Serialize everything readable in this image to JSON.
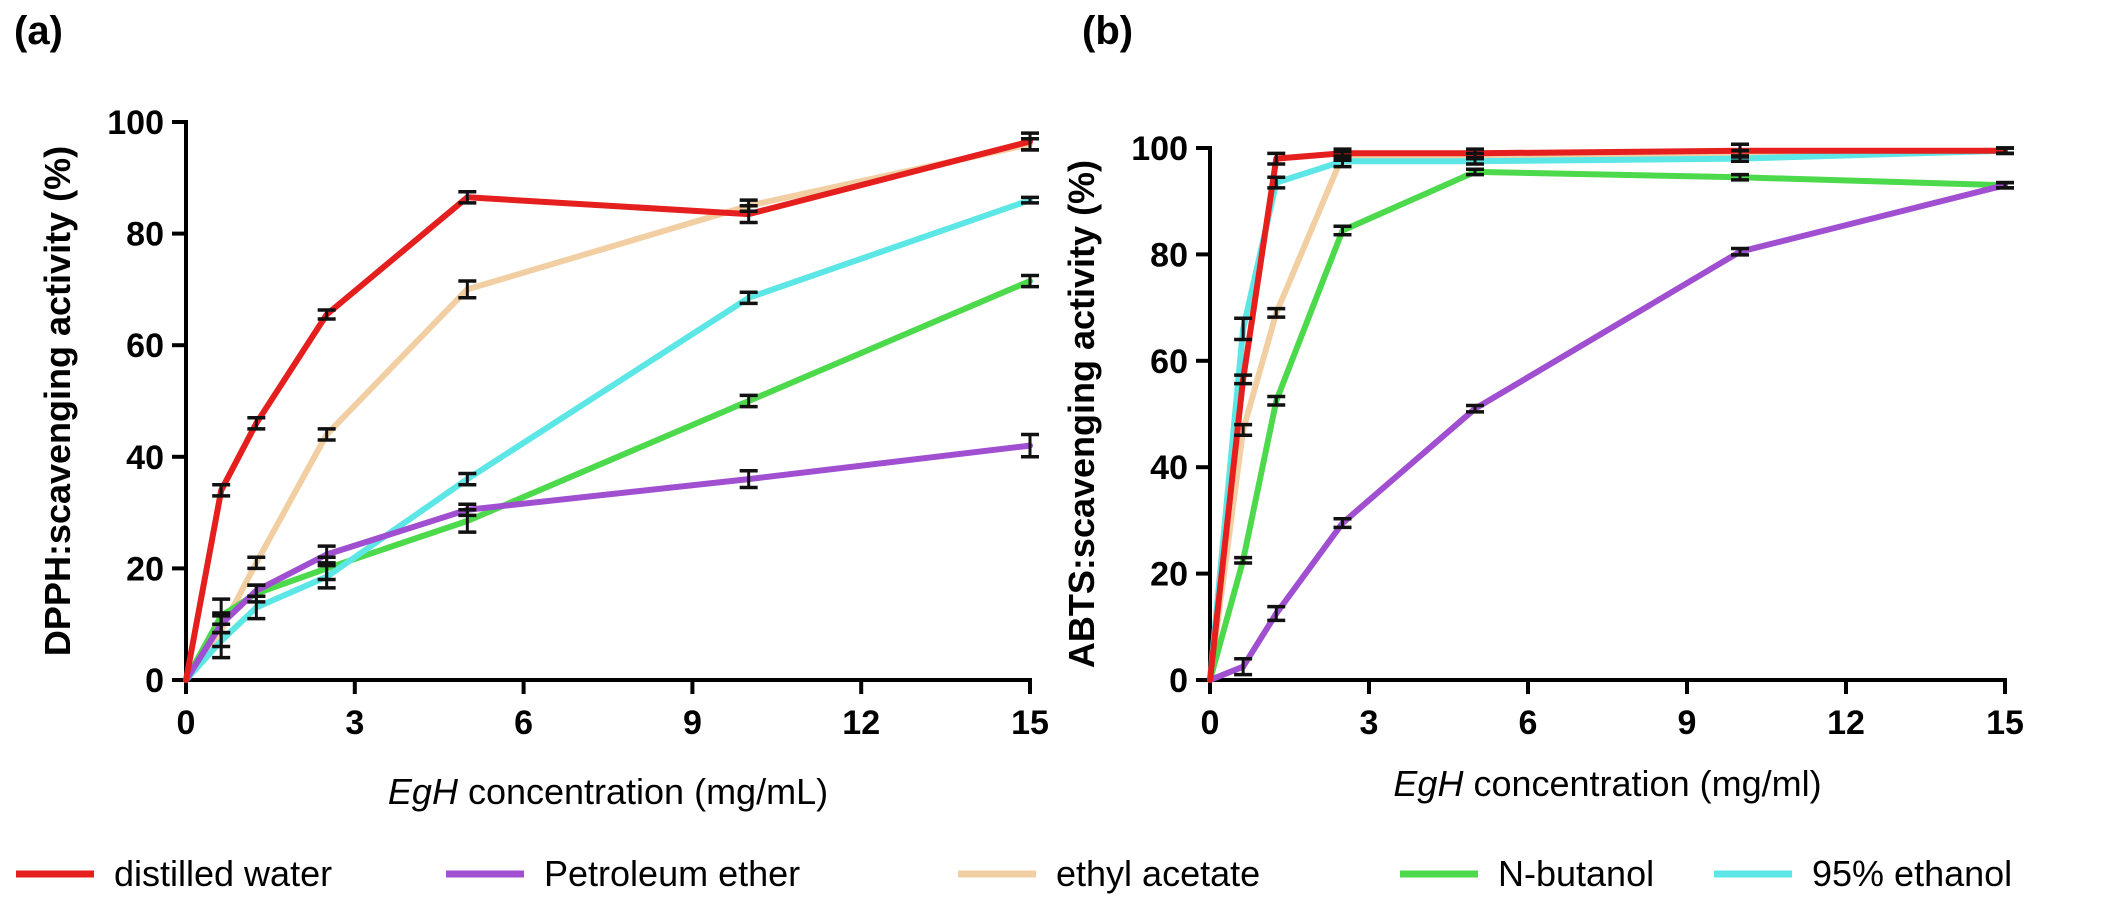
{
  "panels": [
    {
      "panel_label": "(a)",
      "chart_data": {
        "type": "line",
        "xlabel_italic": "EgH",
        "xlabel_rest": " concentration (mg/mL)",
        "ylabel": "DPPH:scavenging activity (%)",
        "xlim": [
          0,
          15
        ],
        "ylim": [
          0,
          100
        ],
        "xticks": [
          0,
          3,
          6,
          9,
          12,
          15
        ],
        "yticks": [
          0,
          20,
          40,
          60,
          80,
          100
        ],
        "grid": false,
        "series": [
          {
            "name": "ethyl acetate",
            "color": "#f2cfa3",
            "x": [
              0,
              0.625,
              1.25,
              2.5,
              5,
              10,
              15
            ],
            "y": [
              0,
              9,
              21,
              44,
              70,
              85,
              96
            ],
            "err": [
              0,
              3,
              1,
              1,
              1.5,
              1,
              1
            ]
          },
          {
            "name": "N-butanol",
            "color": "#4cd94c",
            "x": [
              0,
              0.625,
              1.25,
              2.5,
              5,
              10,
              15
            ],
            "y": [
              0,
              11.5,
              15.5,
              20,
              28.5,
              50,
              71.5
            ],
            "err": [
              0,
              3,
              1.5,
              2,
              2,
              1,
              1
            ]
          },
          {
            "name": "95% ethanol",
            "color": "#5ce6e6",
            "x": [
              0,
              0.625,
              1.25,
              2.5,
              5,
              10,
              15
            ],
            "y": [
              0,
              7,
              13,
              18.5,
              36,
              68.5,
              86
            ],
            "err": [
              0,
              3,
              2,
              2,
              1,
              1,
              0.5
            ]
          },
          {
            "name": "Petroleum ether",
            "color": "#a04fd0",
            "x": [
              0,
              0.625,
              1.25,
              2.5,
              5,
              10,
              15
            ],
            "y": [
              0,
              10,
              16,
              22.5,
              30.5,
              36,
              42
            ],
            "err": [
              0,
              1.5,
              1,
              1.5,
              1,
              1.5,
              2
            ]
          },
          {
            "name": "distilled water",
            "color": "#e51e1e",
            "x": [
              0,
              0.625,
              1.25,
              2.5,
              5,
              10,
              15
            ],
            "y": [
              0,
              34,
              46,
              65.5,
              86.5,
              83.5,
              96.5
            ],
            "err": [
              0,
              1,
              1,
              0.8,
              1,
              1.5,
              1.5
            ]
          }
        ]
      }
    },
    {
      "panel_label": "(b)",
      "chart_data": {
        "type": "line",
        "xlabel_italic": "EgH",
        "xlabel_rest": " concentration (mg/ml)",
        "ylabel": "ABTS:scavenging activity (%)",
        "xlim": [
          0,
          15
        ],
        "ylim": [
          0,
          100
        ],
        "xticks": [
          0,
          3,
          6,
          9,
          12,
          15
        ],
        "yticks": [
          0,
          20,
          40,
          60,
          80,
          100
        ],
        "grid": false,
        "series": [
          {
            "name": "ethyl acetate",
            "color": "#f2cfa3",
            "x": [
              0,
              0.625,
              1.25,
              2.5,
              5,
              10,
              15
            ],
            "y": [
              0,
              47,
              69,
              98.5,
              98.5,
              99,
              99.5
            ],
            "err": [
              0,
              1,
              0.8,
              0.8,
              0.5,
              0.5,
              0.5
            ]
          },
          {
            "name": "N-butanol",
            "color": "#4cd94c",
            "x": [
              0,
              0.625,
              1.25,
              2.5,
              5,
              10,
              15
            ],
            "y": [
              0,
              22.5,
              52.5,
              84.5,
              95.5,
              94.5,
              93
            ],
            "err": [
              0,
              0.5,
              0.8,
              0.8,
              0.5,
              0.5,
              0.5
            ]
          },
          {
            "name": "95% ethanol",
            "color": "#5ce6e6",
            "x": [
              0,
              0.625,
              1.25,
              2.5,
              5,
              10,
              15
            ],
            "y": [
              0,
              66,
              93.5,
              97.5,
              97.5,
              98,
              99.5
            ],
            "err": [
              0,
              2,
              1,
              1,
              0.5,
              0.5,
              0.5
            ]
          },
          {
            "name": "Petroleum ether",
            "color": "#a04fd0",
            "x": [
              0,
              0.625,
              1.25,
              2.5,
              5,
              10,
              15
            ],
            "y": [
              0,
              2.5,
              12.5,
              29.5,
              51,
              80.5,
              93
            ],
            "err": [
              0,
              1.5,
              1.3,
              0.8,
              0.6,
              0.6,
              0.5
            ]
          },
          {
            "name": "distilled water",
            "color": "#e51e1e",
            "x": [
              0,
              0.625,
              1.25,
              2.5,
              5,
              10,
              15
            ],
            "y": [
              0,
              56.5,
              98,
              99,
              99,
              99.5,
              99.5
            ],
            "err": [
              0,
              0.8,
              1,
              0.8,
              0.8,
              1.2,
              0.5
            ]
          }
        ]
      }
    }
  ],
  "legend": [
    {
      "label": "distilled water",
      "color": "#e51e1e"
    },
    {
      "label": "Petroleum ether",
      "color": "#a04fd0"
    },
    {
      "label": "ethyl acetate",
      "color": "#f2cfa3"
    },
    {
      "label": "N-butanol",
      "color": "#4cd94c"
    },
    {
      "label": "95% ethanol",
      "color": "#5ce6e6"
    }
  ]
}
